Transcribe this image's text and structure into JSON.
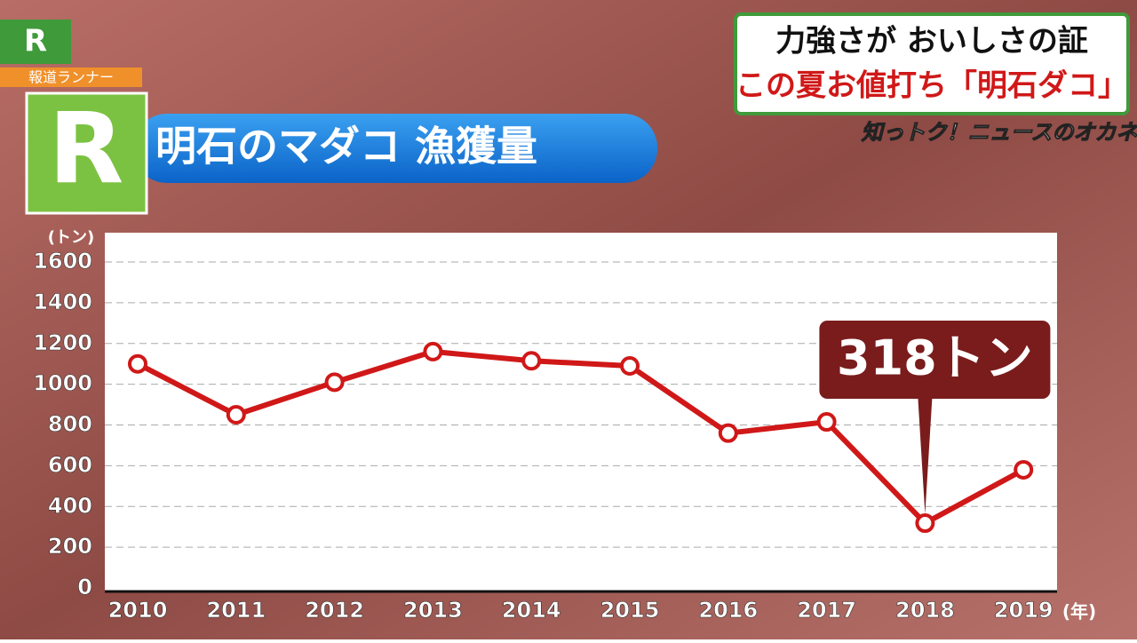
{
  "program": {
    "logo": "R",
    "name": "報道ランナー",
    "corner": "知っトク！ニュースのオカネ"
  },
  "headline": {
    "line1": "力強さが おいしさの証",
    "line2": "この夏お値打ち「明石ダコ」"
  },
  "chart_data": {
    "type": "line",
    "title": "明石のマダコ 漁獲量",
    "y_label": "(トン)",
    "x_label": "(年)",
    "categories": [
      "2010",
      "2011",
      "2012",
      "2013",
      "2014",
      "2015",
      "2016",
      "2017",
      "2018",
      "2019"
    ],
    "values": [
      1100,
      850,
      1010,
      1160,
      1115,
      1090,
      760,
      815,
      318,
      580
    ],
    "value_labels": [
      null,
      null,
      null,
      null,
      null,
      null,
      null,
      null,
      "318トン",
      null
    ],
    "color": "#d01818",
    "ylim": [
      0,
      1600
    ],
    "yticks": [
      0,
      200,
      400,
      600,
      800,
      1000,
      1200,
      1400,
      1600
    ],
    "grid": true
  }
}
